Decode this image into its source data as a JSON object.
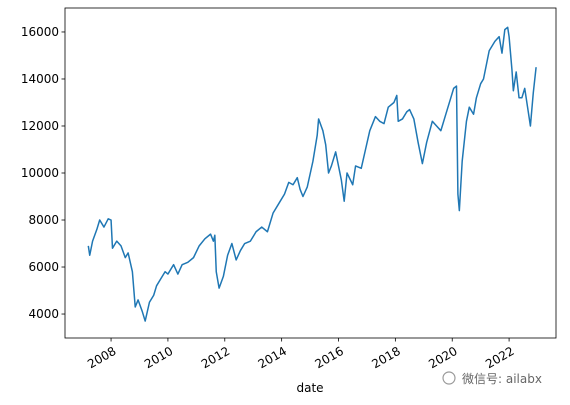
{
  "chart_data": {
    "type": "line",
    "x_label": "date",
    "annotation": "微信号: ailabx",
    "color": "#1f77b4",
    "x": [
      2007.2,
      2007.25,
      2007.35,
      2007.5,
      2007.6,
      2007.75,
      2007.9,
      2008.0,
      2008.05,
      2008.2,
      2008.35,
      2008.5,
      2008.6,
      2008.75,
      2008.85,
      2008.95,
      2009.1,
      2009.2,
      2009.35,
      2009.5,
      2009.6,
      2009.75,
      2009.9,
      2010.0,
      2010.2,
      2010.35,
      2010.5,
      2010.7,
      2010.9,
      2011.1,
      2011.3,
      2011.5,
      2011.6,
      2011.65,
      2011.7,
      2011.8,
      2011.95,
      2012.1,
      2012.25,
      2012.4,
      2012.55,
      2012.7,
      2012.9,
      2013.1,
      2013.3,
      2013.5,
      2013.7,
      2013.9,
      2014.1,
      2014.25,
      2014.4,
      2014.55,
      2014.65,
      2014.75,
      2014.9,
      2015.1,
      2015.25,
      2015.3,
      2015.45,
      2015.55,
      2015.65,
      2015.75,
      2015.9,
      2016.1,
      2016.2,
      2016.3,
      2016.5,
      2016.6,
      2016.8,
      2016.95,
      2017.1,
      2017.3,
      2017.45,
      2017.6,
      2017.75,
      2017.95,
      2018.05,
      2018.1,
      2018.25,
      2018.4,
      2018.5,
      2018.65,
      2018.8,
      2018.95,
      2019.1,
      2019.3,
      2019.45,
      2019.6,
      2019.75,
      2019.95,
      2020.05,
      2020.15,
      2020.2,
      2020.25,
      2020.35,
      2020.5,
      2020.6,
      2020.75,
      2020.85,
      2021.0,
      2021.1,
      2021.3,
      2021.5,
      2021.65,
      2021.75,
      2021.85,
      2021.95,
      2022.0,
      2022.1,
      2022.15,
      2022.25,
      2022.35,
      2022.45,
      2022.55,
      2022.65,
      2022.75,
      2022.85,
      2022.95
    ],
    "values": [
      6900,
      6500,
      7100,
      7600,
      8000,
      7700,
      8050,
      8000,
      6800,
      7100,
      6900,
      6400,
      6600,
      5800,
      4300,
      4600,
      4100,
      3700,
      4500,
      4800,
      5200,
      5500,
      5800,
      5700,
      6100,
      5700,
      6100,
      6200,
      6400,
      6900,
      7200,
      7400,
      7100,
      7350,
      5800,
      5100,
      5600,
      6500,
      7000,
      6300,
      6700,
      7000,
      7100,
      7500,
      7700,
      7500,
      8300,
      8700,
      9100,
      9600,
      9500,
      9800,
      9300,
      9000,
      9400,
      10500,
      11600,
      12300,
      11800,
      11200,
      10000,
      10300,
      10900,
      9700,
      8800,
      10000,
      9500,
      10300,
      10200,
      11000,
      11800,
      12400,
      12200,
      12100,
      12800,
      13000,
      13300,
      12200,
      12300,
      12600,
      12700,
      12300,
      11300,
      10400,
      11300,
      12200,
      12000,
      11800,
      12400,
      13200,
      13600,
      13700,
      9100,
      8400,
      10500,
      12200,
      12800,
      12500,
      13200,
      13800,
      14000,
      15200,
      15600,
      15800,
      15100,
      16100,
      16200,
      15800,
      14400,
      13500,
      14300,
      13200,
      13200,
      13600,
      12800,
      12000,
      13400,
      14500
    ],
    "xlim": [
      2006.38,
      2023.65
    ],
    "xticks": [
      2008,
      2010,
      2012,
      2014,
      2016,
      2018,
      2020,
      2022
    ],
    "ylim": [
      2980,
      17020
    ],
    "yticks": [
      4000,
      6000,
      8000,
      10000,
      12000,
      14000,
      16000
    ]
  }
}
